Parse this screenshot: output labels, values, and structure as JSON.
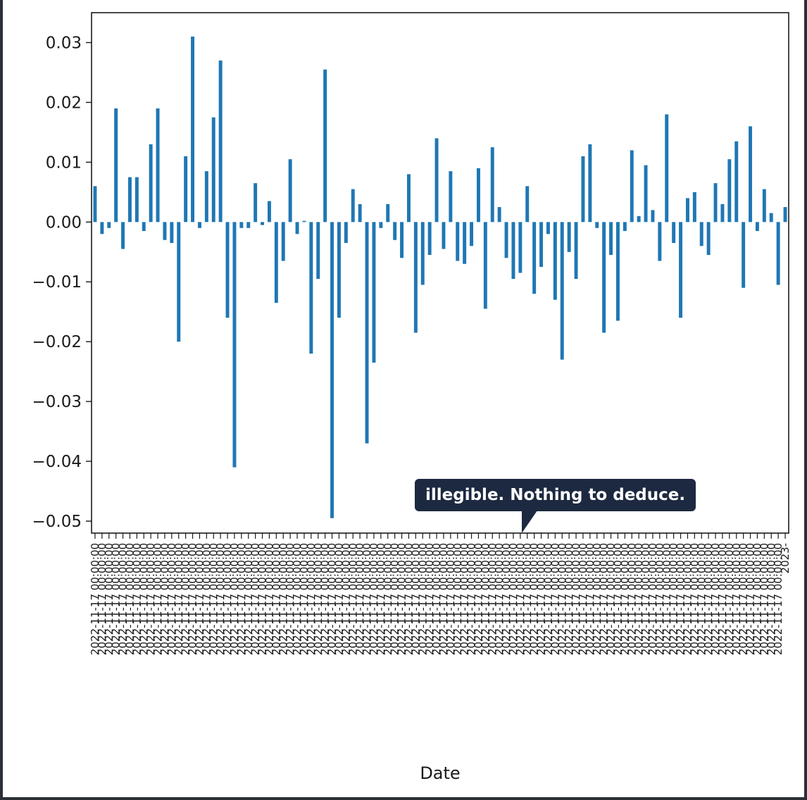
{
  "tooltip": {
    "text": "illegible. Nothing to deduce."
  },
  "chart_data": {
    "type": "bar",
    "xlabel": "Date",
    "ylabel": "",
    "title": "",
    "ylim": [
      -0.052,
      0.035
    ],
    "yticks": [
      0.03,
      0.02,
      0.01,
      0.0,
      -0.01,
      -0.02,
      -0.03,
      -0.04,
      -0.05
    ],
    "ytick_labels": [
      "0.03",
      "0.02",
      "0.01",
      "0.00",
      "−0.01",
      "−0.02",
      "−0.03",
      "−0.04",
      "−0.05"
    ],
    "grid": false,
    "color": "#1f77b4",
    "first_category": "2022-11-17 00:00:00",
    "last_category": "2023-",
    "values": [
      0.006,
      -0.002,
      -0.001,
      0.019,
      -0.0045,
      0.0075,
      0.0075,
      -0.0015,
      0.013,
      0.019,
      -0.003,
      -0.0035,
      -0.02,
      0.011,
      0.031,
      -0.001,
      0.0085,
      0.0175,
      0.027,
      -0.016,
      -0.041,
      -0.001,
      -0.001,
      0.0065,
      -0.0005,
      0.0035,
      -0.0135,
      -0.0065,
      0.0105,
      -0.002,
      0.0002,
      -0.022,
      -0.0095,
      0.0255,
      -0.0495,
      -0.016,
      -0.0035,
      0.0055,
      0.003,
      -0.037,
      -0.0235,
      -0.001,
      0.003,
      -0.003,
      -0.006,
      0.008,
      -0.0185,
      -0.0105,
      -0.0055,
      0.014,
      -0.0045,
      0.0085,
      -0.0065,
      -0.007,
      -0.004,
      0.009,
      -0.0145,
      0.0125,
      0.0025,
      -0.006,
      -0.0095,
      -0.0085,
      0.006,
      -0.012,
      -0.0075,
      -0.002,
      -0.013,
      -0.023,
      -0.005,
      -0.0095,
      0.011,
      0.013,
      -0.001,
      -0.0185,
      -0.0055,
      -0.0165,
      -0.0015,
      0.012,
      0.001,
      0.0095,
      0.002,
      -0.0065,
      0.018,
      -0.0035,
      -0.016,
      0.004,
      0.005,
      -0.004,
      -0.0055,
      0.0065,
      0.003,
      0.0105,
      0.0135,
      -0.011,
      0.016,
      -0.0015,
      0.0055,
      0.0015,
      -0.0105,
      0.0025
    ]
  }
}
